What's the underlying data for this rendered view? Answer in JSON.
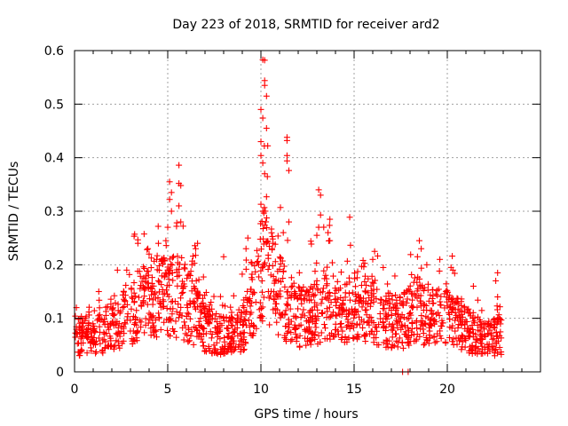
{
  "chart_data": {
    "type": "scatter",
    "title": "Day 223 of 2018, SRMTID for receiver ard2",
    "xlabel": "GPS time / hours",
    "ylabel": "SRMTID / TECUs",
    "xlim": [
      0,
      25
    ],
    "ylim": [
      0,
      0.6
    ],
    "x_ticks": [
      0,
      5,
      10,
      15,
      20
    ],
    "y_ticks": [
      0,
      0.1,
      0.2,
      0.3,
      0.4,
      0.5,
      0.6
    ],
    "x_tick_labels": [
      "0",
      "5",
      "10",
      "15",
      "20"
    ],
    "y_tick_labels": [
      "0",
      "0.1",
      "0.2",
      "0.3",
      "0.4",
      "0.5",
      "0.6"
    ],
    "grid": true,
    "marker": "plus",
    "color": "#ff0000",
    "x_data_range": [
      0,
      22.9
    ],
    "baseline_profile": [
      {
        "x": 0.0,
        "y": 0.07
      },
      {
        "x": 1.0,
        "y": 0.06
      },
      {
        "x": 2.0,
        "y": 0.09
      },
      {
        "x": 3.0,
        "y": 0.11
      },
      {
        "x": 3.7,
        "y": 0.14
      },
      {
        "x": 5.0,
        "y": 0.14
      },
      {
        "x": 5.7,
        "y": 0.14
      },
      {
        "x": 7.0,
        "y": 0.08
      },
      {
        "x": 8.0,
        "y": 0.07
      },
      {
        "x": 9.0,
        "y": 0.08
      },
      {
        "x": 9.5,
        "y": 0.14
      },
      {
        "x": 10.2,
        "y": 0.2
      },
      {
        "x": 11.0,
        "y": 0.14
      },
      {
        "x": 12.0,
        "y": 0.1
      },
      {
        "x": 13.0,
        "y": 0.11
      },
      {
        "x": 13.5,
        "y": 0.13
      },
      {
        "x": 14.5,
        "y": 0.12
      },
      {
        "x": 15.5,
        "y": 0.13
      },
      {
        "x": 16.5,
        "y": 0.1
      },
      {
        "x": 17.5,
        "y": 0.09
      },
      {
        "x": 18.2,
        "y": 0.12
      },
      {
        "x": 19.0,
        "y": 0.1
      },
      {
        "x": 20.0,
        "y": 0.1
      },
      {
        "x": 21.0,
        "y": 0.08
      },
      {
        "x": 22.0,
        "y": 0.06
      },
      {
        "x": 22.9,
        "y": 0.07
      }
    ],
    "highlight_points": [
      {
        "x": 10.1,
        "y": 0.583
      },
      {
        "x": 10.2,
        "y": 0.582
      },
      {
        "x": 10.2,
        "y": 0.544
      },
      {
        "x": 10.2,
        "y": 0.535
      },
      {
        "x": 10.3,
        "y": 0.515
      },
      {
        "x": 10.0,
        "y": 0.49
      },
      {
        "x": 10.1,
        "y": 0.474
      },
      {
        "x": 10.3,
        "y": 0.455
      },
      {
        "x": 10.0,
        "y": 0.43
      },
      {
        "x": 10.0,
        "y": 0.404
      },
      {
        "x": 10.1,
        "y": 0.39
      },
      {
        "x": 10.2,
        "y": 0.37
      },
      {
        "x": 10.0,
        "y": 0.313
      },
      {
        "x": 10.3,
        "y": 0.327
      },
      {
        "x": 10.1,
        "y": 0.3
      },
      {
        "x": 11.4,
        "y": 0.438
      },
      {
        "x": 11.4,
        "y": 0.432
      },
      {
        "x": 11.4,
        "y": 0.404
      },
      {
        "x": 11.4,
        "y": 0.394
      },
      {
        "x": 11.5,
        "y": 0.376
      },
      {
        "x": 11.5,
        "y": 0.28
      },
      {
        "x": 11.2,
        "y": 0.26
      },
      {
        "x": 5.6,
        "y": 0.386
      },
      {
        "x": 5.6,
        "y": 0.352
      },
      {
        "x": 5.7,
        "y": 0.348
      },
      {
        "x": 5.6,
        "y": 0.31
      },
      {
        "x": 5.7,
        "y": 0.28
      },
      {
        "x": 5.1,
        "y": 0.355
      },
      {
        "x": 5.2,
        "y": 0.335
      },
      {
        "x": 5.1,
        "y": 0.322
      },
      {
        "x": 5.2,
        "y": 0.3
      },
      {
        "x": 5.0,
        "y": 0.27
      },
      {
        "x": 4.9,
        "y": 0.245
      },
      {
        "x": 4.5,
        "y": 0.24
      },
      {
        "x": 3.4,
        "y": 0.24
      },
      {
        "x": 13.1,
        "y": 0.34
      },
      {
        "x": 13.2,
        "y": 0.33
      },
      {
        "x": 13.2,
        "y": 0.293
      },
      {
        "x": 13.1,
        "y": 0.27
      },
      {
        "x": 13.0,
        "y": 0.255
      },
      {
        "x": 13.7,
        "y": 0.285
      },
      {
        "x": 13.6,
        "y": 0.26
      },
      {
        "x": 13.7,
        "y": 0.245
      },
      {
        "x": 9.3,
        "y": 0.25
      },
      {
        "x": 9.2,
        "y": 0.23
      },
      {
        "x": 6.6,
        "y": 0.24
      },
      {
        "x": 6.5,
        "y": 0.23
      },
      {
        "x": 8.0,
        "y": 0.215
      },
      {
        "x": 16.1,
        "y": 0.225
      },
      {
        "x": 16.0,
        "y": 0.21
      },
      {
        "x": 18.5,
        "y": 0.245
      },
      {
        "x": 18.6,
        "y": 0.23
      },
      {
        "x": 18.4,
        "y": 0.215
      },
      {
        "x": 19.6,
        "y": 0.21
      },
      {
        "x": 20.2,
        "y": 0.195
      },
      {
        "x": 20.3,
        "y": 0.19
      },
      {
        "x": 22.7,
        "y": 0.185
      },
      {
        "x": 22.6,
        "y": 0.17
      },
      {
        "x": 22.7,
        "y": 0.14
      },
      {
        "x": 17.6,
        "y": 0.0
      },
      {
        "x": 0.1,
        "y": 0.12
      },
      {
        "x": 1.3,
        "y": 0.15
      },
      {
        "x": 2.3,
        "y": 0.19
      },
      {
        "x": 2.8,
        "y": 0.19
      },
      {
        "x": 4.0,
        "y": 0.22
      },
      {
        "x": 6.3,
        "y": 0.2
      },
      {
        "x": 17.9,
        "y": 0.0
      },
      {
        "x": 18.9,
        "y": 0.2
      },
      {
        "x": 21.4,
        "y": 0.16
      }
    ]
  }
}
